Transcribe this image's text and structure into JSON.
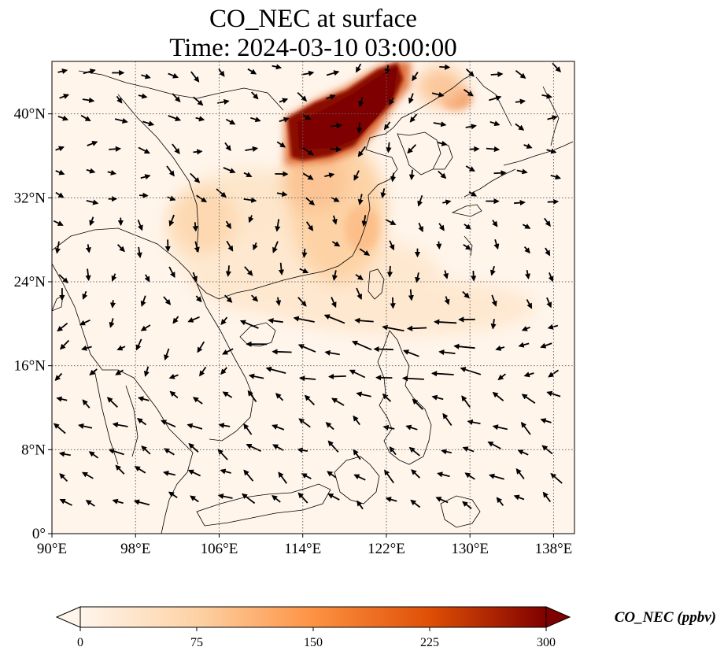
{
  "title": {
    "line1": "CO_NEC at surface",
    "line2": "Time: 2024-03-10 03:00:00"
  },
  "map": {
    "lon_range": [
      90,
      140
    ],
    "lat_range": [
      0,
      45
    ],
    "lon_ticks": [
      {
        "value": 90,
        "label": "90°E"
      },
      {
        "value": 98,
        "label": "98°E"
      },
      {
        "value": 106,
        "label": "106°E"
      },
      {
        "value": 114,
        "label": "114°E"
      },
      {
        "value": 122,
        "label": "122°E"
      },
      {
        "value": 130,
        "label": "130°E"
      },
      {
        "value": 138,
        "label": "138°E"
      }
    ],
    "lat_ticks": [
      {
        "value": 0,
        "label": "0°"
      },
      {
        "value": 8,
        "label": "8°N"
      },
      {
        "value": 16,
        "label": "16°N"
      },
      {
        "value": 24,
        "label": "24°N"
      },
      {
        "value": 32,
        "label": "32°N"
      },
      {
        "value": 40,
        "label": "40°N"
      }
    ],
    "gridlines": "dotted",
    "field": "CO_NEC",
    "vectors": "wind arrows"
  },
  "colorbar": {
    "label": "CO_NEC (ppbv)",
    "ticks": [
      {
        "value": 0,
        "label": "0"
      },
      {
        "value": 75,
        "label": "75"
      },
      {
        "value": 150,
        "label": "150"
      },
      {
        "value": 225,
        "label": "225"
      },
      {
        "value": 300,
        "label": "300"
      }
    ],
    "range": [
      0,
      300
    ],
    "extend": "both",
    "colormap": [
      "#fff5eb",
      "#fdd2a5",
      "#fd9243",
      "#df4f05",
      "#7f0000"
    ]
  }
}
